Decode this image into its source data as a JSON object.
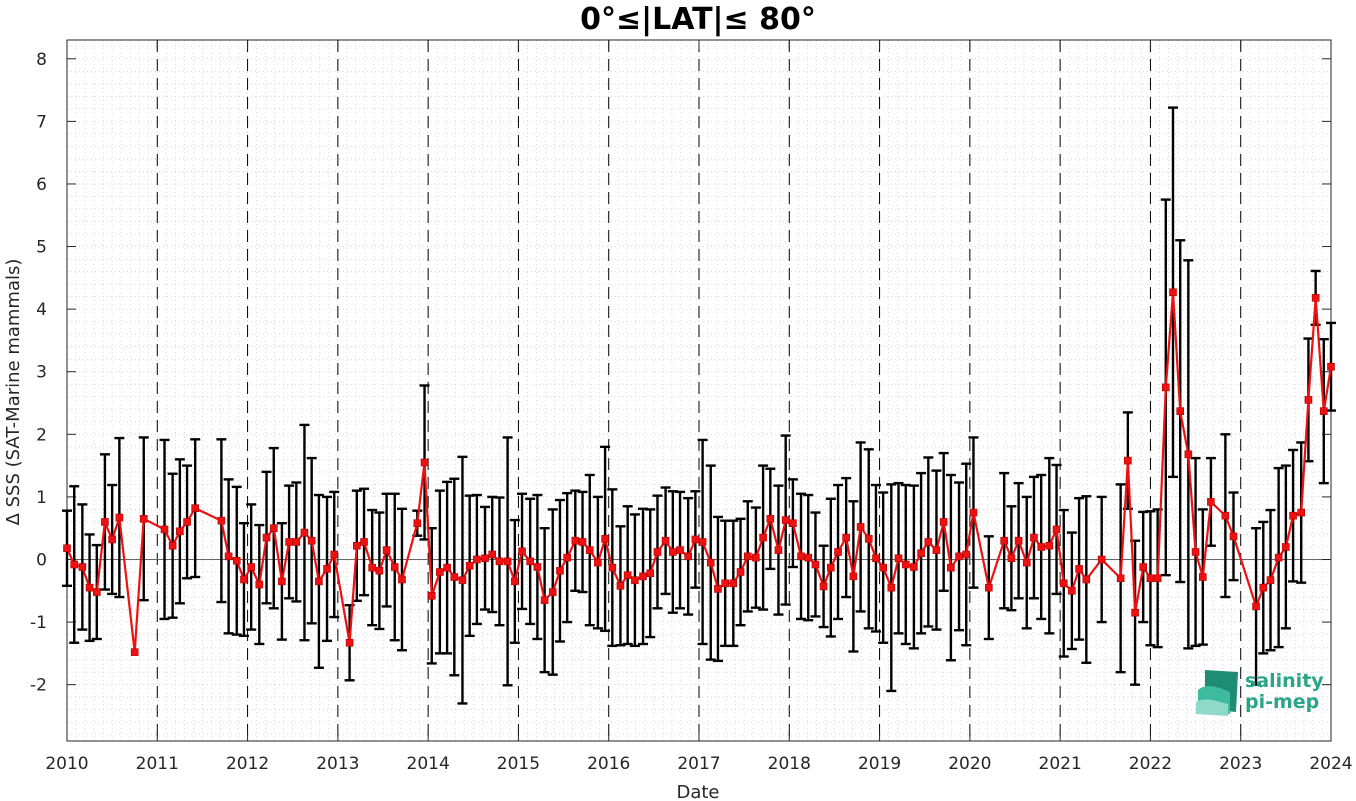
{
  "chart_data": {
    "type": "line",
    "title": "0°≤|LAT|≤ 80°",
    "xlabel": "Date",
    "ylabel": "Δ SSS (SAT-Marine mammals)",
    "xlim": [
      2010,
      2024
    ],
    "ylim": [
      -2.9,
      8.3
    ],
    "x_ticks": [
      "2010",
      "2011",
      "2012",
      "2013",
      "2014",
      "2015",
      "2016",
      "2017",
      "2018",
      "2019",
      "2020",
      "2021",
      "2022",
      "2023",
      "2024"
    ],
    "y_ticks": [
      -2,
      -1,
      0,
      1,
      2,
      3,
      4,
      5,
      6,
      7,
      8
    ],
    "grid": "dotted-minor",
    "year_dividers": "dashed",
    "zero_line": true,
    "colors": {
      "series": "#ee1111",
      "error_bars": "#000000",
      "zero_line": "#666666"
    },
    "series": [
      {
        "x": [
          2010.0,
          2010.08,
          2010.17,
          2010.25,
          2010.33,
          2010.42,
          2010.5,
          2010.58,
          2010.75,
          2010.85,
          2011.08,
          2011.17,
          2011.25,
          2011.33,
          2011.42,
          2011.71,
          2011.79,
          2011.88,
          2011.96,
          2012.04,
          2012.13,
          2012.21,
          2012.29,
          2012.38,
          2012.46,
          2012.54,
          2012.63,
          2012.71,
          2012.79,
          2012.88,
          2012.96,
          2013.13,
          2013.21,
          2013.29,
          2013.38,
          2013.46,
          2013.54,
          2013.63,
          2013.71,
          2013.88,
          2013.96,
          2014.04,
          2014.13,
          2014.21,
          2014.29,
          2014.38,
          2014.46,
          2014.54,
          2014.63,
          2014.71,
          2014.79,
          2014.88,
          2014.96,
          2015.04,
          2015.13,
          2015.21,
          2015.29,
          2015.38,
          2015.46,
          2015.54,
          2015.63,
          2015.71,
          2015.79,
          2015.88,
          2015.96,
          2016.04,
          2016.13,
          2016.21,
          2016.29,
          2016.38,
          2016.46,
          2016.54,
          2016.63,
          2016.71,
          2016.79,
          2016.88,
          2016.96,
          2017.04,
          2017.13,
          2017.21,
          2017.29,
          2017.38,
          2017.46,
          2017.54,
          2017.63,
          2017.71,
          2017.79,
          2017.88,
          2017.96,
          2018.04,
          2018.13,
          2018.21,
          2018.29,
          2018.38,
          2018.46,
          2018.54,
          2018.63,
          2018.71,
          2018.79,
          2018.88,
          2018.96,
          2019.04,
          2019.13,
          2019.21,
          2019.29,
          2019.38,
          2019.46,
          2019.54,
          2019.63,
          2019.71,
          2019.79,
          2019.88,
          2019.96,
          2020.04,
          2020.21,
          2020.38,
          2020.46,
          2020.54,
          2020.63,
          2020.71,
          2020.79,
          2020.88,
          2020.96,
          2021.04,
          2021.13,
          2021.21,
          2021.29,
          2021.46,
          2021.67,
          2021.75,
          2021.83,
          2021.92,
          2022.0,
          2022.08,
          2022.17,
          2022.25,
          2022.33,
          2022.42,
          2022.5,
          2022.58,
          2022.67,
          2022.83,
          2022.92,
          2023.17,
          2023.25,
          2023.33,
          2023.42,
          2023.5,
          2023.58,
          2023.67,
          2023.75,
          2023.83,
          2023.92,
          2024.0
        ],
        "y": [
          0.18,
          -0.08,
          -0.12,
          -0.45,
          -0.52,
          0.6,
          0.32,
          0.67,
          -1.48,
          0.65,
          0.48,
          0.22,
          0.45,
          0.6,
          0.82,
          0.62,
          0.05,
          -0.02,
          -0.32,
          -0.12,
          -0.4,
          0.35,
          0.5,
          -0.35,
          0.28,
          0.28,
          0.43,
          0.3,
          -0.35,
          -0.15,
          0.08,
          -1.33,
          0.22,
          0.28,
          -0.13,
          -0.18,
          0.15,
          -0.12,
          -0.32,
          0.58,
          1.55,
          -0.58,
          -0.2,
          -0.13,
          -0.28,
          -0.33,
          -0.1,
          0.0,
          0.02,
          0.08,
          -0.03,
          -0.03,
          -0.35,
          0.13,
          -0.03,
          -0.12,
          -0.65,
          -0.52,
          -0.18,
          0.03,
          0.3,
          0.28,
          0.15,
          -0.05,
          0.33,
          -0.13,
          -0.42,
          -0.25,
          -0.33,
          -0.27,
          -0.22,
          0.12,
          0.3,
          0.12,
          0.15,
          0.05,
          0.32,
          0.28,
          -0.05,
          -0.47,
          -0.38,
          -0.38,
          -0.2,
          0.05,
          0.03,
          0.35,
          0.65,
          0.15,
          0.63,
          0.58,
          0.05,
          0.03,
          -0.08,
          -0.43,
          -0.13,
          0.12,
          0.35,
          -0.27,
          0.52,
          0.33,
          0.02,
          -0.13,
          -0.45,
          0.02,
          -0.08,
          -0.12,
          0.1,
          0.28,
          0.15,
          0.6,
          -0.13,
          0.05,
          0.08,
          0.75,
          -0.45,
          0.3,
          0.02,
          0.3,
          -0.05,
          0.35,
          0.2,
          0.22,
          0.48,
          -0.38,
          -0.5,
          -0.15,
          -0.32,
          0.0,
          -0.3,
          1.58,
          -0.85,
          -0.12,
          -0.3,
          -0.3,
          2.75,
          4.27,
          2.37,
          1.68,
          0.12,
          -0.28,
          0.92,
          0.7,
          0.37,
          -0.75,
          -0.45,
          -0.33,
          0.03,
          0.2,
          0.7,
          0.75,
          2.55,
          4.18,
          2.37,
          3.08
        ],
        "yerr": [
          0.6,
          1.25,
          1.0,
          0.85,
          0.75,
          1.08,
          0.87,
          1.27,
          0.0,
          1.3,
          1.43,
          1.15,
          1.15,
          0.9,
          1.1,
          1.3,
          1.23,
          1.18,
          0.9,
          1.0,
          0.95,
          1.05,
          1.28,
          0.93,
          0.9,
          0.95,
          1.72,
          1.32,
          1.38,
          1.15,
          1.0,
          0.6,
          0.88,
          0.85,
          0.92,
          0.93,
          0.9,
          1.17,
          1.13,
          0.2,
          1.23,
          1.08,
          1.3,
          1.37,
          1.57,
          1.97,
          1.12,
          1.03,
          0.82,
          0.92,
          1.02,
          1.98,
          0.98,
          0.92,
          1.0,
          1.15,
          1.15,
          1.32,
          1.13,
          1.03,
          0.8,
          0.8,
          1.2,
          1.05,
          1.47,
          1.25,
          0.95,
          1.1,
          1.05,
          1.08,
          1.02,
          0.9,
          0.85,
          0.97,
          0.93,
          0.93,
          0.77,
          1.63,
          1.55,
          1.15,
          1.0,
          1.0,
          0.85,
          0.88,
          0.8,
          1.15,
          0.8,
          1.03,
          1.35,
          0.7,
          1.0,
          1.0,
          0.83,
          0.65,
          1.1,
          1.07,
          0.95,
          1.2,
          1.35,
          1.43,
          1.17,
          1.2,
          1.65,
          1.2,
          1.27,
          1.3,
          1.28,
          1.35,
          1.27,
          1.1,
          1.48,
          1.18,
          1.45,
          1.2,
          0.82,
          1.08,
          0.83,
          0.92,
          1.05,
          0.97,
          1.15,
          1.4,
          1.03,
          1.17,
          0.93,
          1.13,
          1.33,
          1.0,
          1.5,
          0.77,
          1.15,
          0.88,
          1.07,
          1.1,
          3.0,
          2.95,
          2.73,
          3.1,
          1.5,
          1.08,
          0.7,
          1.3,
          0.7,
          1.25,
          1.05,
          1.12,
          1.43,
          1.3,
          1.05,
          1.12,
          0.98,
          0.43,
          1.15,
          0.7
        ]
      }
    ]
  },
  "logo": {
    "line1": "salinity",
    "line2": "pi-mep"
  }
}
